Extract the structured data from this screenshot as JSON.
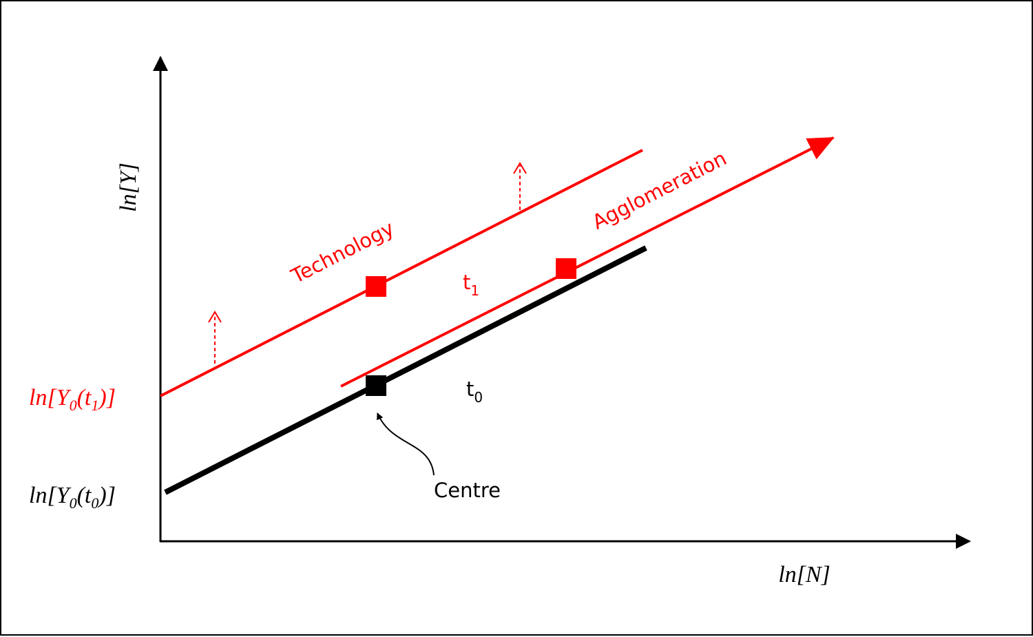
{
  "axes": {
    "y_label": [
      "ln[Y]"
    ],
    "x_label": [
      "ln[N]"
    ]
  },
  "intercepts": {
    "t1": [
      "ln[Y",
      "0",
      "(t",
      "1",
      ")]"
    ],
    "t0": [
      "ln[Y",
      "0",
      "(t",
      "0",
      ")]"
    ]
  },
  "lines": {
    "technology": "Technology",
    "agglomeration": "Agglomeration",
    "t1": [
      "t",
      "1"
    ],
    "t0": [
      "t",
      "0"
    ]
  },
  "annotation": "Centre"
}
